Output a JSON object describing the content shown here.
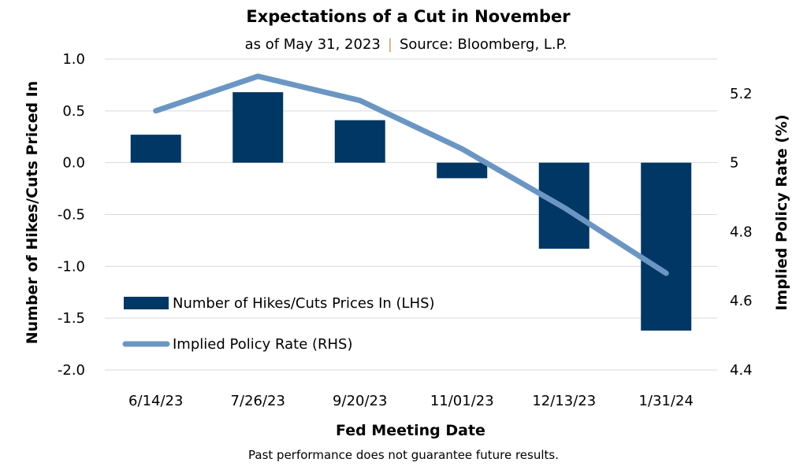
{
  "chart_data": {
    "type": "bar",
    "title": "Expectations of a Cut in November",
    "subtitle_date": "as of May 31, 2023",
    "subtitle_separator": "|",
    "subtitle_source": "Source: Bloomberg, L.P.",
    "xlabel": "Fed Meeting Date",
    "ylabel_left": "Number of Hikes/Cuts Priced In",
    "ylabel_right": "Implied Policy Rate (%)",
    "categories": [
      "6/14/23",
      "7/26/23",
      "9/20/23",
      "11/01/23",
      "12/13/23",
      "1/31/24"
    ],
    "series": [
      {
        "name": "Number of Hikes/Cuts Prices In (LHS)",
        "type": "bar",
        "axis": "left",
        "values": [
          0.27,
          0.68,
          0.41,
          -0.15,
          -0.83,
          -1.62
        ]
      },
      {
        "name": "Implied Policy Rate (RHS)",
        "type": "line",
        "axis": "right",
        "values": [
          5.15,
          5.25,
          5.18,
          5.04,
          4.87,
          4.68
        ]
      }
    ],
    "ylim_left": [
      -2.0,
      1.0
    ],
    "yticks_left": [
      "1.0",
      "0.5",
      "0.0",
      "-0.5",
      "-1.0",
      "-1.5",
      "-2.0"
    ],
    "ylim_right": [
      4.4,
      5.3
    ],
    "yticks_right": [
      "5.2",
      "5",
      "4.8",
      "4.6",
      "4.4"
    ],
    "grid": true,
    "legend_position": "bottom-left",
    "colors": {
      "bar": "#003764",
      "line": "#6b96c3",
      "grid": "#d9d9d9",
      "separator": "#c8a065"
    }
  },
  "footnote": "Past performance does not guarantee future results."
}
